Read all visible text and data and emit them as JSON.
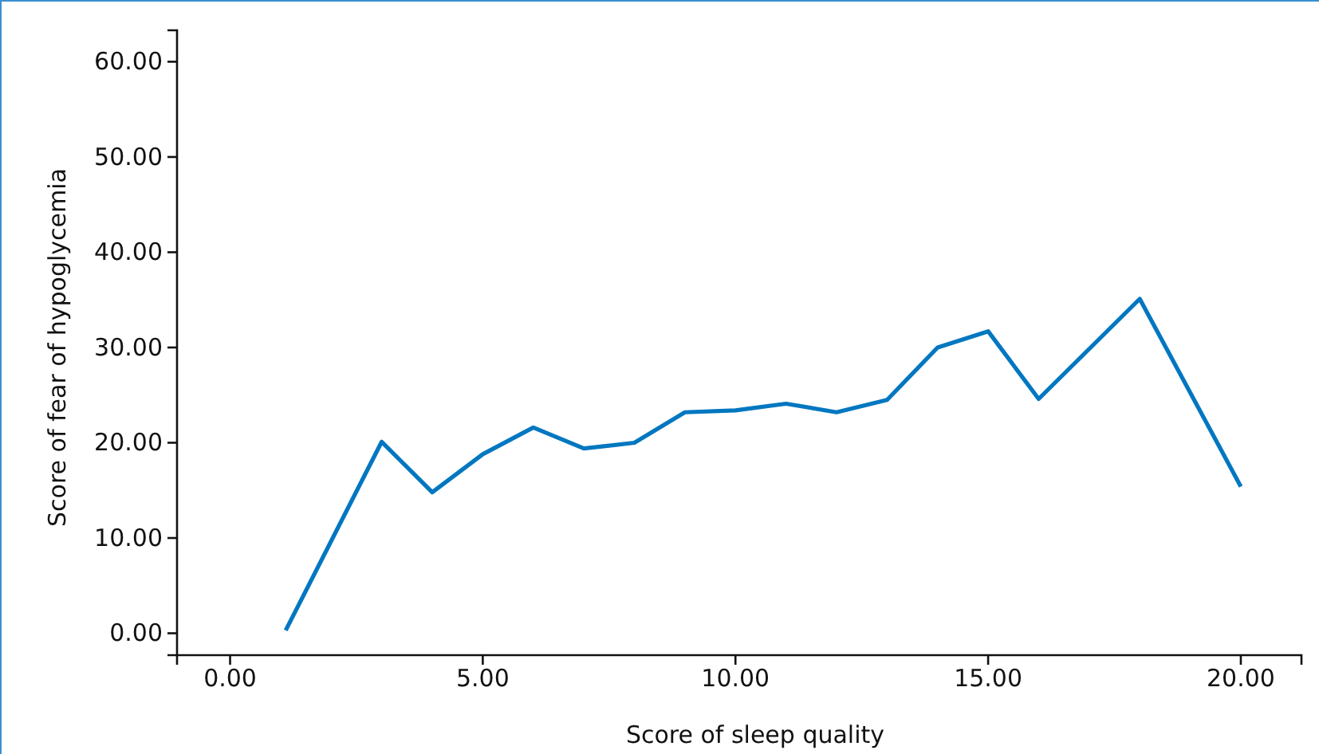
{
  "chart_data": {
    "type": "line",
    "xlabel": "Score of sleep quality",
    "ylabel": "Score of fear of hypoglycemia",
    "x": [
      1.1,
      3,
      4,
      5,
      6,
      7,
      8,
      9,
      10,
      11,
      12,
      13,
      14,
      15,
      16,
      18,
      20
    ],
    "series": [
      {
        "color": "#0077c0",
        "values": [
          0.3,
          20.1,
          14.8,
          18.8,
          21.6,
          19.4,
          20.0,
          23.2,
          23.4,
          24.1,
          23.2,
          24.5,
          30.0,
          31.7,
          24.6,
          35.1,
          15.4
        ]
      }
    ],
    "xlim": [
      -1.05,
      21.2
    ],
    "ylim": [
      -2.3,
      63.3
    ],
    "xticks": [
      {
        "value": 0,
        "label": "0.00"
      },
      {
        "value": 5,
        "label": "5.00"
      },
      {
        "value": 10,
        "label": "10.00"
      },
      {
        "value": 15,
        "label": "15.00"
      },
      {
        "value": 20,
        "label": "20.00"
      }
    ],
    "yticks": [
      {
        "value": 0,
        "label": "0.00"
      },
      {
        "value": 10,
        "label": "10.00"
      },
      {
        "value": 20,
        "label": "20.00"
      },
      {
        "value": 30,
        "label": "30.00"
      },
      {
        "value": 40,
        "label": "40.00"
      },
      {
        "value": 50,
        "label": "50.00"
      },
      {
        "value": 60,
        "label": "60.00"
      }
    ],
    "grid": false,
    "marker": "none",
    "line_style": "solid"
  }
}
